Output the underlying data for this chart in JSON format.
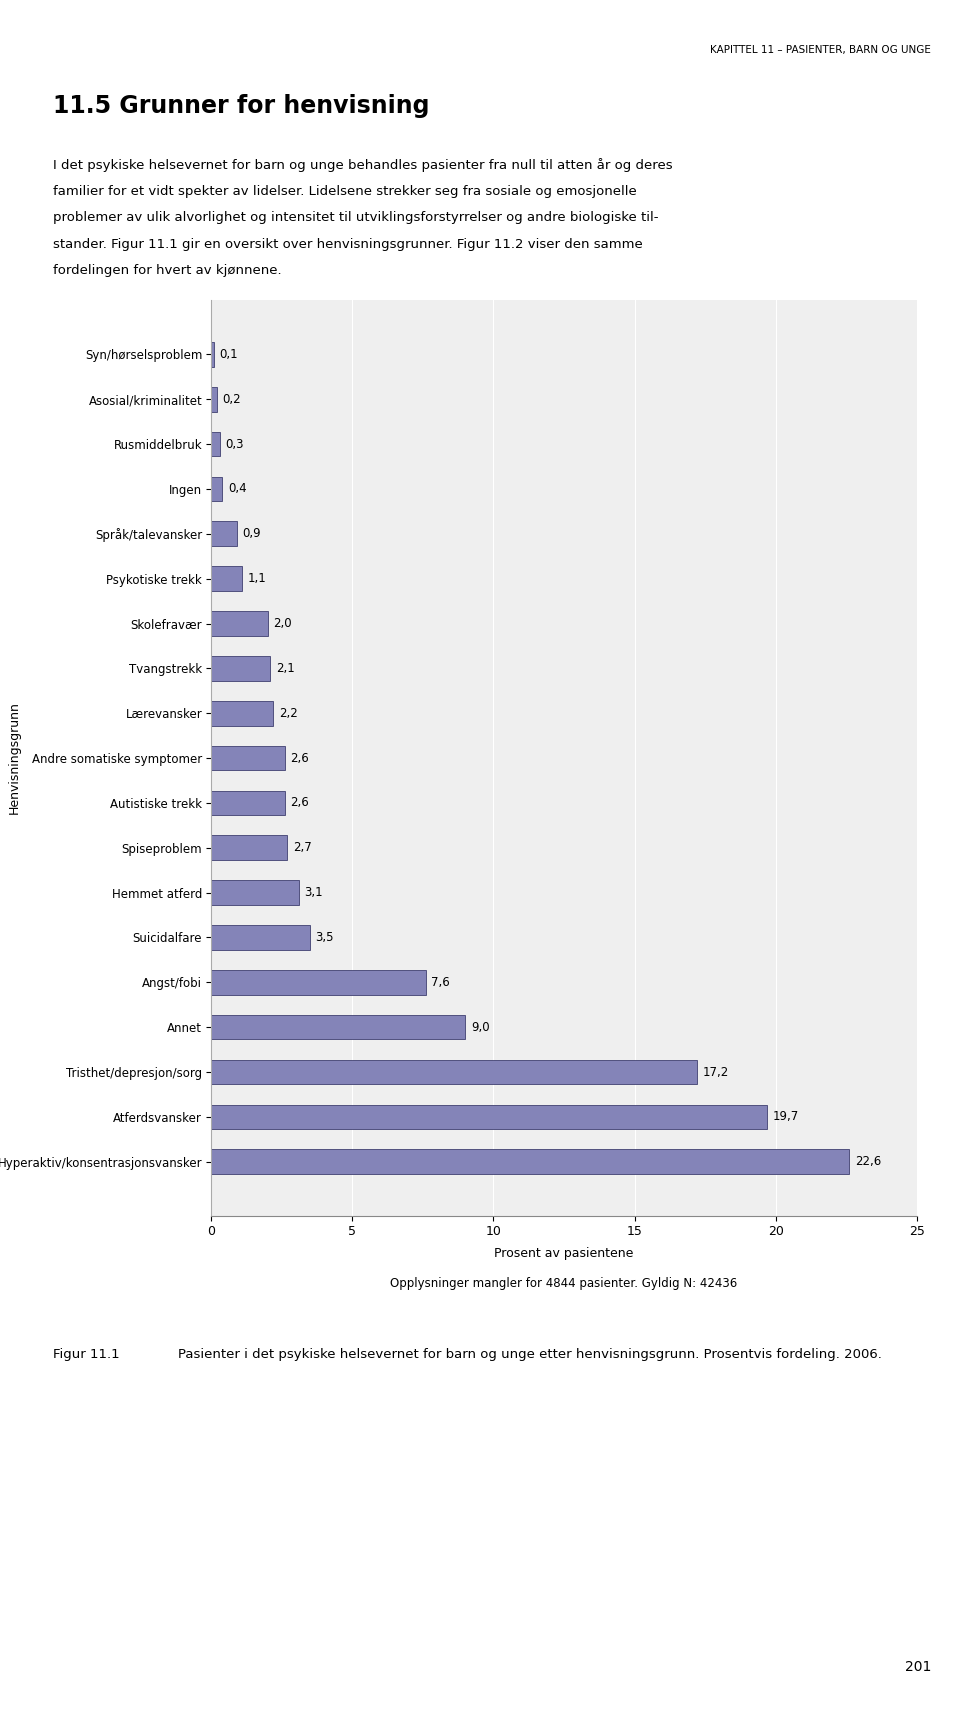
{
  "header": "KAPITTEL 11 – PASIENTER, BARN OG UNGE",
  "section_title": "11.5 Grunner for henvisning",
  "body_text_lines": [
    "I det psykiske helsevernet for barn og unge behandles pasienter fra null til atten år og deres",
    "familier for et vidt spekter av lidelser. Lidelsene strekker seg fra sosiale og emosjonelle",
    "problemer av ulik alvorlighet og intensitet til utviklingsforstyrrelser og andre biologiske til-",
    "stander. Figur 11.1 gir en oversikt over henvisningsgrunner. Figur 11.2 viser den samme",
    "fordelingen for hvert av kjønnene."
  ],
  "categories": [
    "Syn/hørselsproblem",
    "Asosial/kriminalitet",
    "Rusmiddelbruk",
    "Ingen",
    "Språk/talevansker",
    "Psykotiske trekk",
    "Skolefravær",
    "Tvangstrekk",
    "Lærevansker",
    "Andre somatiske symptomer",
    "Autistiske trekk",
    "Spiseproblem",
    "Hemmet atferd",
    "Suicidalfare",
    "Angst/fobi",
    "Annet",
    "Tristhet/depresjon/sorg",
    "Atferdsvansker",
    "Hyperaktiv/konsentrasjonsvansker"
  ],
  "values": [
    0.1,
    0.2,
    0.3,
    0.4,
    0.9,
    1.1,
    2.0,
    2.1,
    2.2,
    2.6,
    2.6,
    2.7,
    3.1,
    3.5,
    7.6,
    9.0,
    17.2,
    19.7,
    22.6
  ],
  "bar_color": "#8484b8",
  "bar_edge_color": "#404070",
  "xlabel": "Prosent av pasientene",
  "xlabel2": "Opplysninger mangler for 4844 pasienter. Gyldig N: 42436",
  "ylabel": "Henvisningsgrunn",
  "xlim": [
    0,
    25
  ],
  "xticks": [
    0,
    5,
    10,
    15,
    20,
    25
  ],
  "figure_label": "Figur 11.1",
  "figure_caption_text": "Pasienter i det psykiske helsevernet for barn og unge etter henvisningsgrunn. Prosentvis fordeling. 2006.",
  "page_number": "201",
  "background_color": "#ffffff",
  "chart_bg_color": "#efefef"
}
